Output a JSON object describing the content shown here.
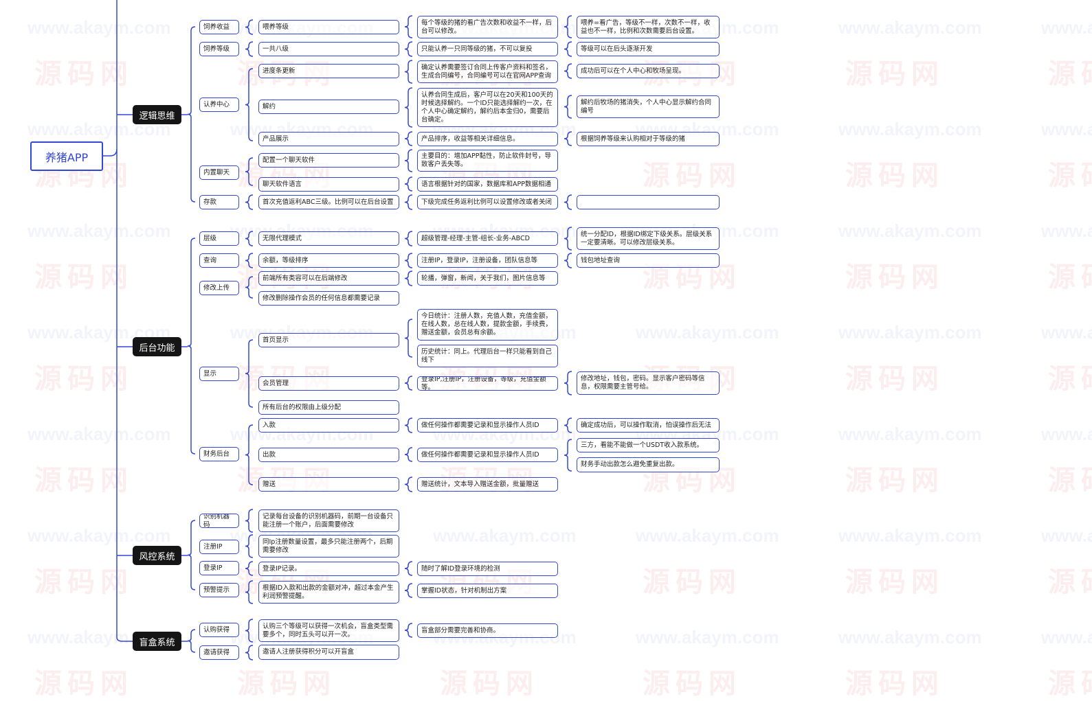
{
  "root": "养猪APP",
  "watermark": [
    "www.akaym.com",
    "源码网"
  ],
  "colors": {
    "border": "#3346d6",
    "category_bg": "#151515",
    "category_text": "#ffffff"
  },
  "sections": [
    {
      "title": "逻辑思维",
      "col2": [
        "饲养收益",
        "饲养等级",
        "认养中心",
        "内置聊天",
        "存款"
      ],
      "col3": [
        "喂养等级",
        "一共八级",
        "进度条更新",
        "解约",
        "产品展示",
        "配置一个聊天软件",
        "聊天软件语言",
        "首次充值返利ABC三级。比例可以在后台设置"
      ],
      "col4": [
        "每个等级的猪的看广告次数和收益不一样，后台可以修改。",
        "只能认养一只同等级的猪，不可以复投",
        "确定认养需要签订合同上传客户资料和签名，生成合同编号，合同编号可以在官网APP查询",
        "认养合同生成后，客户可以在20天和100天的时候选择解约。一个ID只能选择解约一次，在个人中心确定解约，解约后本金归0，需要后台确定。",
        "产品排序，收益等相关详细信息。",
        "主要目的：增加APP黏性，防止软件封号，导致客户丢失等。",
        "语言根据针对的国家，数据库和APP数据相通",
        "下级完成任务返利比例可以设置修改或者关闭"
      ],
      "col5": [
        "喂养=看广告，等级不一样，次数不一样，收益也不一样，比例和次数需要后台设置。",
        "等级可以在后头逐渐开发",
        "成功后可以在个人中心和牧场呈现。",
        "解约后牧场的猪消失，个人中心显示解约合同编号",
        "根据饲养等级来认购相对于等级的猪",
        ""
      ]
    },
    {
      "title": "后台功能",
      "col2": [
        "层级",
        "查询",
        "修改上传",
        "显示",
        "财务后台"
      ],
      "col3": [
        "无限代理模式",
        "余额，等级排序",
        "前端所有类容可以在后端修改",
        "修改删除操作会员的任何信息都需要记录",
        "首页显示",
        "会员管理",
        "所有后台的权限由上级分配",
        "入款",
        "出款",
        "赠送"
      ],
      "col4": [
        "超级管理-经理-主管-组长-业务-ABCD",
        "注册IP，登录IP，注册设备，团队信息等",
        "轮播，弹窗，新闻，关于我们，图片信息等",
        "今日统计：注册人数，充值人数，充值金额，在线人数，总在线人数，提款金额，手续费，赠送金额，会员总有余额。",
        "历史统计：同上。代理后台一样只能看到自己线下",
        "登录IP,注册IP，注册设备，等级，充值金额等。",
        "做任何操作都需要记录和显示操作人员ID",
        "做任何操作都需要记录和显示操作人员ID",
        "赠送统计，文本导入赠送金额，批量赠送"
      ],
      "col5": [
        "统一分配ID，根据ID绑定下级关系。层级关系一定要清晰。可以修改层级关系。",
        "钱包地址查询",
        "修改地址，钱包，密码。显示客户密码等信息，权限需要主管号给。",
        "确定成功后，可以操作取消，怕误操作后无法",
        "三方，看能不能做一个USDT收入款系统。",
        "财务手动出款怎么避免重复出款。"
      ]
    },
    {
      "title": "风控系统",
      "col2": [
        "识别机器码",
        "注册IP",
        "登录IP",
        "预警提示"
      ],
      "col3": [
        "记录每台设备的识别机器码，前期一台设备只能注册一个账户，后面需要修改",
        "同Ip注册数量设置，最多只能注册两个，后期需要修改",
        "登录IP记录。",
        "根据ID入款和出款的金额对冲，超过本金产生利润预警提醒。"
      ],
      "col4": [
        "随时了解ID登录环境的检测",
        "掌握ID状态，针对机制出方案"
      ]
    },
    {
      "title": "盲盒系统",
      "col2": [
        "认购获得",
        "邀请获得"
      ],
      "col3": [
        "认购三个等级可以获得一次机会，盲盒类型需要多个，同时五头可以开一次。",
        "邀请人注册获得积分可以开盲盒"
      ],
      "col4": [
        "盲盒部分需要完善和协商。"
      ]
    }
  ]
}
